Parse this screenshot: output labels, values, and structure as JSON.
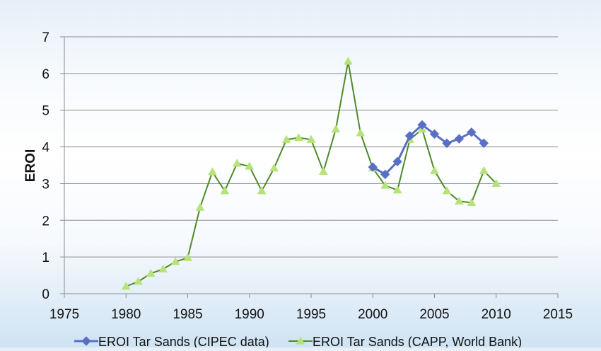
{
  "chart_data": {
    "type": "line",
    "title": "",
    "xlabel": "",
    "ylabel": "EROI",
    "xlim": [
      1975,
      2015
    ],
    "ylim": [
      0,
      7
    ],
    "xticks": [
      1975,
      1980,
      1985,
      1990,
      1995,
      2000,
      2005,
      2010,
      2015
    ],
    "yticks": [
      0,
      1,
      2,
      3,
      4,
      5,
      6,
      7
    ],
    "grid": "horizontal",
    "legend": "bottom",
    "series": [
      {
        "name": "EROI Tar Sands (CIPEC data)",
        "color": "#5a6fc4",
        "marker": "diamond",
        "x": [
          2000,
          2001,
          2002,
          2003,
          2004,
          2005,
          2006,
          2007,
          2008,
          2009
        ],
        "y": [
          3.45,
          3.25,
          3.6,
          4.3,
          4.6,
          4.35,
          4.1,
          4.22,
          4.4,
          4.1
        ]
      },
      {
        "name": "EROI Tar Sands (CAPP, World Bank)",
        "color": "#4f8a2a",
        "marker_color": "#b6e27a",
        "marker": "triangle",
        "x": [
          1980,
          1981,
          1982,
          1983,
          1984,
          1985,
          1986,
          1987,
          1988,
          1989,
          1990,
          1991,
          1992,
          1993,
          1994,
          1995,
          1996,
          1997,
          1998,
          1999,
          2000,
          2001,
          2002,
          2003,
          2004,
          2005,
          2006,
          2007,
          2008,
          2009,
          2010
        ],
        "y": [
          0.2,
          0.33,
          0.55,
          0.67,
          0.87,
          0.98,
          2.35,
          3.32,
          2.8,
          3.55,
          3.47,
          2.8,
          3.42,
          4.2,
          4.25,
          4.2,
          3.33,
          4.48,
          6.33,
          4.38,
          3.42,
          2.95,
          2.82,
          4.2,
          4.48,
          3.35,
          2.8,
          2.52,
          2.48,
          3.35,
          3.0
        ]
      }
    ]
  }
}
